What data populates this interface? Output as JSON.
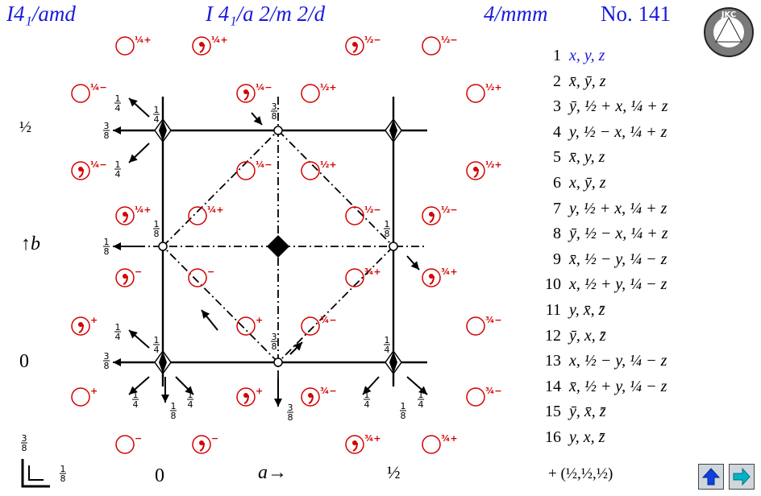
{
  "header": {
    "short_symbol": "I4₁/amd",
    "full_symbol": "I 4₁/a 2/m 2/d",
    "point_group": "4/mmm",
    "number": "No. 141"
  },
  "coordinates": [
    {
      "n": "1",
      "xyz": "x, y, z"
    },
    {
      "n": "2",
      "xyz": "x̄, ȳ, z"
    },
    {
      "n": "3",
      "xyz": "ȳ, ½ + x, ¼ + z"
    },
    {
      "n": "4",
      "xyz": "y, ½ − x, ¼ + z"
    },
    {
      "n": "5",
      "xyz": "x̄, y, z"
    },
    {
      "n": "6",
      "xyz": "x, ȳ, z"
    },
    {
      "n": "7",
      "xyz": "y, ½ + x, ¼ + z"
    },
    {
      "n": "8",
      "xyz": "ȳ, ½ − x, ¼ + z"
    },
    {
      "n": "9",
      "xyz": "x̄, ½ − y, ¼ − z"
    },
    {
      "n": "10",
      "xyz": "x, ½ + y, ¼ − z"
    },
    {
      "n": "11",
      "xyz": "y, x̄, z̄"
    },
    {
      "n": "12",
      "xyz": "ȳ, x, z̄"
    },
    {
      "n": "13",
      "xyz": "x, ½ − y, ¼ − z"
    },
    {
      "n": "14",
      "xyz": "x̄, ½ + y, ¼ − z"
    },
    {
      "n": "15",
      "xyz": "ȳ, x̄, z̄"
    },
    {
      "n": "16",
      "xyz": "y, x, z̄"
    }
  ],
  "centering": "+ (½,½,½)",
  "axes": {
    "a": "a",
    "b": "b"
  },
  "ticks": {
    "x0": "0",
    "xhalf": "½",
    "y0": "0",
    "yhalf": "½"
  },
  "logo_text": "JKC",
  "colors": {
    "header": "#1a1adc",
    "marker": "#d40000",
    "nav_up": "#1040e0",
    "nav_next": "#00b4c8"
  },
  "icons": {
    "up": "arrow-up-icon",
    "next": "arrow-right-icon"
  }
}
